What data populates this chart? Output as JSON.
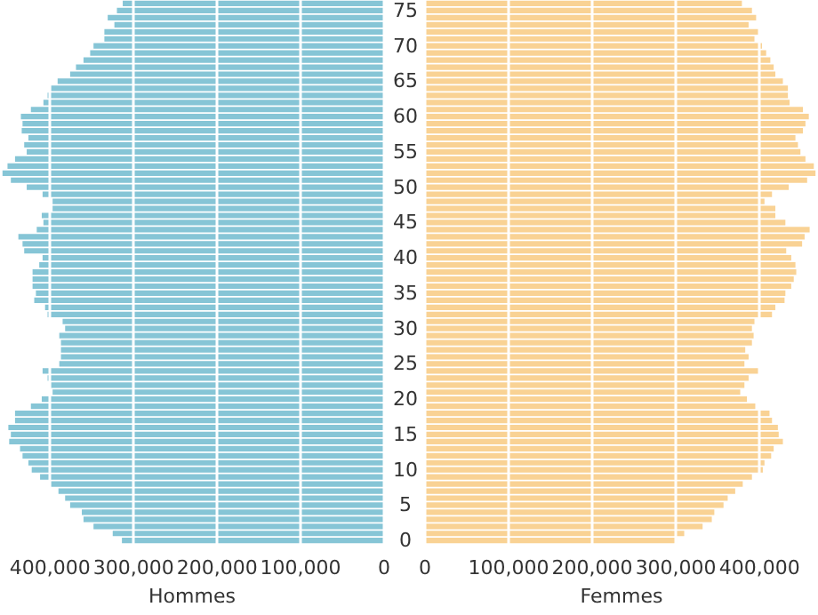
{
  "chart_data": [
    {
      "type": "bar",
      "orientation": "horizontal",
      "xlabel": "Hommes",
      "categories": [
        null,
        "75",
        null,
        null,
        null,
        null,
        "70",
        null,
        null,
        null,
        null,
        "65",
        null,
        null,
        null,
        null,
        "60",
        null,
        null,
        null,
        null,
        "55",
        null,
        null,
        null,
        null,
        "50",
        null,
        null,
        null,
        null,
        "45",
        null,
        null,
        null,
        null,
        "40",
        null,
        null,
        null,
        null,
        "35",
        null,
        null,
        null,
        null,
        "30",
        null,
        null,
        null,
        null,
        "25",
        null,
        null,
        null,
        null,
        "20",
        null,
        null,
        null,
        null,
        "15",
        null,
        null,
        null,
        null,
        "10",
        null,
        null,
        null,
        null,
        "5",
        null,
        null,
        null,
        null,
        "0"
      ],
      "color": "#86c5d6",
      "values": [
        313000,
        320000,
        331000,
        323000,
        335000,
        335000,
        348000,
        352000,
        360000,
        369000,
        376000,
        391000,
        399000,
        403000,
        408000,
        423000,
        435000,
        433000,
        434000,
        426000,
        431000,
        428000,
        442000,
        451000,
        457000,
        447000,
        428000,
        409000,
        397000,
        397000,
        410000,
        408000,
        416000,
        438000,
        433000,
        431000,
        409000,
        413000,
        421000,
        421000,
        421000,
        417000,
        419000,
        406000,
        403000,
        385000,
        382000,
        389000,
        387000,
        387000,
        387000,
        389000,
        409000,
        403000,
        399000,
        397000,
        410000,
        423000,
        442000,
        442000,
        450000,
        447000,
        449000,
        436000,
        433000,
        426000,
        422000,
        412000,
        399000,
        390000,
        382000,
        376000,
        362000,
        360000,
        348000,
        325000,
        314000
      ],
      "xlim": [
        460000,
        0
      ],
      "xticks": [
        {
          "value": 400000,
          "label": "400,000"
        },
        {
          "value": 300000,
          "label": "300,000"
        },
        {
          "value": 200000,
          "label": "200,000"
        },
        {
          "value": 100000,
          "label": "100,000"
        },
        0
      ],
      "grid": "x"
    },
    {
      "type": "bar",
      "orientation": "horizontal",
      "xlabel": "Femmes",
      "categories": [
        null,
        "75",
        null,
        null,
        null,
        null,
        "70",
        null,
        null,
        null,
        null,
        "65",
        null,
        null,
        null,
        null,
        "60",
        null,
        null,
        null,
        null,
        "55",
        null,
        null,
        null,
        null,
        "50",
        null,
        null,
        null,
        null,
        "45",
        null,
        null,
        null,
        null,
        "40",
        null,
        null,
        null,
        null,
        "35",
        null,
        null,
        null,
        null,
        "30",
        null,
        null,
        null,
        null,
        "25",
        null,
        null,
        null,
        null,
        "20",
        null,
        null,
        null,
        null,
        "15",
        null,
        null,
        null,
        null,
        "10",
        null,
        null,
        null,
        null,
        "5",
        null,
        null,
        null,
        null,
        "0"
      ],
      "color": "#f9d294",
      "values": [
        379000,
        391000,
        396000,
        387000,
        399000,
        394000,
        403000,
        408000,
        413000,
        417000,
        419000,
        428000,
        434000,
        434000,
        436000,
        452000,
        459000,
        455000,
        452000,
        443000,
        446000,
        449000,
        455000,
        465000,
        467000,
        457000,
        435000,
        415000,
        406000,
        419000,
        419000,
        431000,
        460000,
        454000,
        451000,
        432000,
        438000,
        443000,
        444000,
        441000,
        438000,
        431000,
        430000,
        419000,
        415000,
        394000,
        391000,
        393000,
        391000,
        383000,
        387000,
        382000,
        399000,
        387000,
        382000,
        377000,
        385000,
        395000,
        412000,
        415000,
        422000,
        423000,
        428000,
        417000,
        414000,
        406000,
        404000,
        391000,
        380000,
        371000,
        362000,
        357000,
        346000,
        343000,
        332000,
        310000,
        301000
      ],
      "xlim": [
        0,
        470000
      ],
      "xticks": [
        0,
        {
          "value": 100000,
          "label": "100,000"
        },
        {
          "value": 200000,
          "label": "200,000"
        },
        {
          "value": 300000,
          "label": "300,000"
        },
        {
          "value": 400000,
          "label": "400,000"
        }
      ],
      "grid": "x",
      "tick_labels": "x"
    }
  ]
}
